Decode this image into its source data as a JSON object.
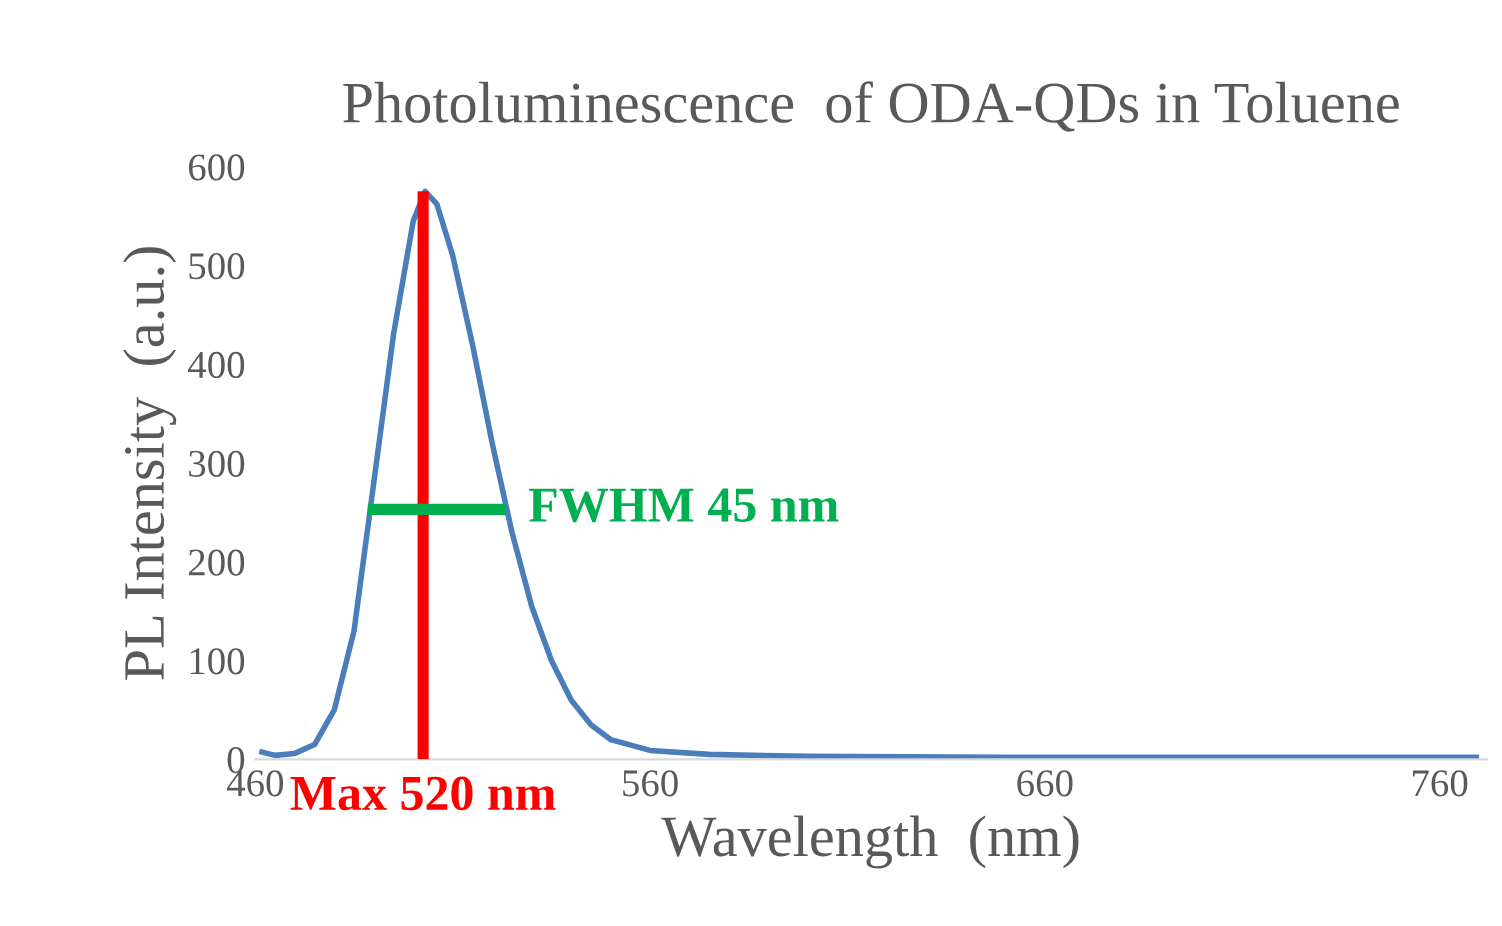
{
  "chart_data": {
    "type": "line",
    "title": "Photoluminescence  of ODA-QDs in Toluene",
    "xlabel": "Wavelength  (nm)",
    "ylabel": "PL Intensity  (a.u.)",
    "xlim": [
      460,
      772
    ],
    "xticks": [
      460,
      560,
      660,
      760
    ],
    "ylim": [
      0,
      600
    ],
    "yticks": [
      0,
      100,
      200,
      300,
      400,
      500,
      600
    ],
    "grid": false,
    "legend": false,
    "series": [
      {
        "color": "#4a7ebb",
        "x": [
          461,
          465,
          470,
          475,
          480,
          485,
          490,
          495,
          500,
          503,
          506,
          510,
          515,
          520,
          525,
          530,
          535,
          540,
          545,
          550,
          560,
          575,
          600,
          650,
          700,
          770
        ],
        "values": [
          8,
          4,
          6,
          15,
          50,
          130,
          280,
          430,
          545,
          575,
          562,
          510,
          420,
          320,
          230,
          155,
          100,
          60,
          35,
          20,
          9,
          5,
          3,
          2,
          2,
          2
        ]
      },
      {
        "color": "#ff0000",
        "x": [
          502.5,
          502.5
        ],
        "values": [
          0,
          575
        ]
      },
      {
        "color": "#00b050",
        "x": [
          488.5,
          523.5
        ],
        "values": [
          253,
          253
        ]
      }
    ],
    "annotations": [
      {
        "text": "Max 520 nm",
        "x": 502.5,
        "y": 0
      },
      {
        "text": "FWHM 45 nm",
        "x": 523.5,
        "y": 253
      }
    ]
  }
}
